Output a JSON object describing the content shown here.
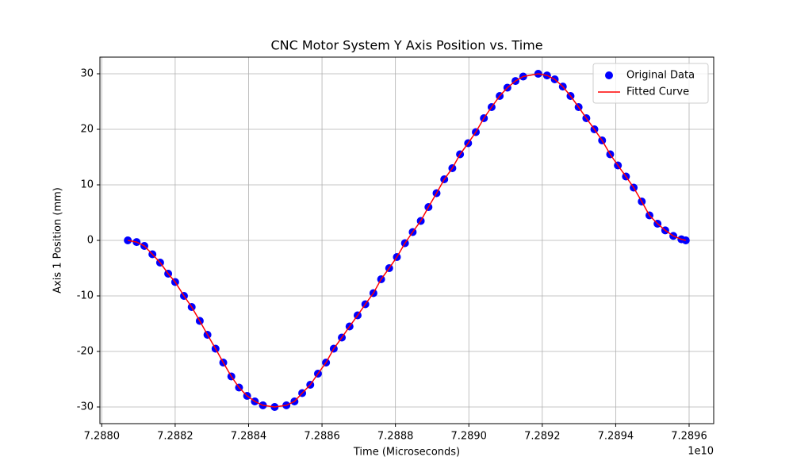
{
  "chart_data": {
    "type": "line",
    "title": "CNC Motor System Y Axis Position vs. Time",
    "x_label": "Time (Microseconds)",
    "y_label": "Axis 1 Position (mm)",
    "x_offset_label": "1e10",
    "grid": true,
    "legend": "upper right",
    "xlim": [
      72879950000,
      72896670000
    ],
    "ylim": [
      -33,
      33
    ],
    "xticks": [
      {
        "value": 72880000000,
        "label": "7.2880"
      },
      {
        "value": 72882000000,
        "label": "7.2882"
      },
      {
        "value": 72884000000,
        "label": "7.2884"
      },
      {
        "value": 72886000000,
        "label": "7.2886"
      },
      {
        "value": 72888000000,
        "label": "7.2888"
      },
      {
        "value": 72890000000,
        "label": "7.2890"
      },
      {
        "value": 72892000000,
        "label": "7.2892"
      },
      {
        "value": 72894000000,
        "label": "7.2894"
      },
      {
        "value": 72896000000,
        "label": "7.2896"
      }
    ],
    "yticks": [
      -30,
      -20,
      -10,
      0,
      10,
      20,
      30
    ],
    "x": [
      72880710000,
      72880950000,
      72881160000,
      72881380000,
      72881590000,
      72881810000,
      72882000000,
      72882240000,
      72882450000,
      72882670000,
      72882880000,
      72883100000,
      72883310000,
      72883530000,
      72883740000,
      72883960000,
      72884170000,
      72884390000,
      72884710000,
      72885030000,
      72885250000,
      72885460000,
      72885680000,
      72885890000,
      72886110000,
      72886320000,
      72886540000,
      72886750000,
      72886970000,
      72887180000,
      72887400000,
      72887610000,
      72887830000,
      72888040000,
      72888260000,
      72888470000,
      72888690000,
      72888900000,
      72889120000,
      72889330000,
      72889550000,
      72889760000,
      72889980000,
      72890190000,
      72890410000,
      72890620000,
      72890840000,
      72891050000,
      72891270000,
      72891480000,
      72891890000,
      72892130000,
      72892340000,
      72892560000,
      72892770000,
      72892990000,
      72893200000,
      72893420000,
      72893630000,
      72893850000,
      72894060000,
      72894280000,
      72894490000,
      72894710000,
      72894920000,
      72895140000,
      72895350000,
      72895570000,
      72895790000,
      72895910000
    ],
    "series": [
      {
        "name": "Original Data",
        "color": "#0000ff",
        "mode": "markers",
        "values": [
          0,
          -0.3,
          -1,
          -2.5,
          -4,
          -6,
          -7.5,
          -10,
          -12,
          -14.5,
          -17,
          -19.5,
          -22,
          -24.5,
          -26.5,
          -28,
          -29,
          -29.7,
          -30,
          -29.7,
          -29,
          -27.5,
          -26,
          -24,
          -22,
          -19.5,
          -17.5,
          -15.5,
          -13.5,
          -11.5,
          -9.5,
          -7,
          -5,
          -3,
          -0.5,
          1.5,
          3.5,
          6,
          8.5,
          11,
          13,
          15.5,
          17.5,
          19.5,
          22,
          24,
          26,
          27.5,
          28.7,
          29.5,
          30,
          29.7,
          29,
          27.7,
          26,
          24,
          22,
          20,
          18,
          15.5,
          13.5,
          11.5,
          9.5,
          7,
          4.5,
          3,
          1.8,
          0.8,
          0.2,
          0
        ]
      },
      {
        "name": "Fitted Curve",
        "color": "#ff0000",
        "mode": "line",
        "values": [
          0,
          -0.3,
          -1,
          -2.5,
          -4,
          -6,
          -7.5,
          -10,
          -12,
          -14.5,
          -17,
          -19.5,
          -22,
          -24.5,
          -26.5,
          -28,
          -29,
          -29.7,
          -30,
          -29.7,
          -29,
          -27.5,
          -26,
          -24,
          -22,
          -19.5,
          -17.5,
          -15.5,
          -13.5,
          -11.5,
          -9.5,
          -7,
          -5,
          -3,
          -0.5,
          1.5,
          3.5,
          6,
          8.5,
          11,
          13,
          15.5,
          17.5,
          19.5,
          22,
          24,
          26,
          27.5,
          28.7,
          29.5,
          30,
          29.7,
          29,
          27.7,
          26,
          24,
          22,
          20,
          18,
          15.5,
          13.5,
          11.5,
          9.5,
          7,
          4.5,
          3,
          1.8,
          0.8,
          0.2,
          0
        ]
      }
    ]
  }
}
